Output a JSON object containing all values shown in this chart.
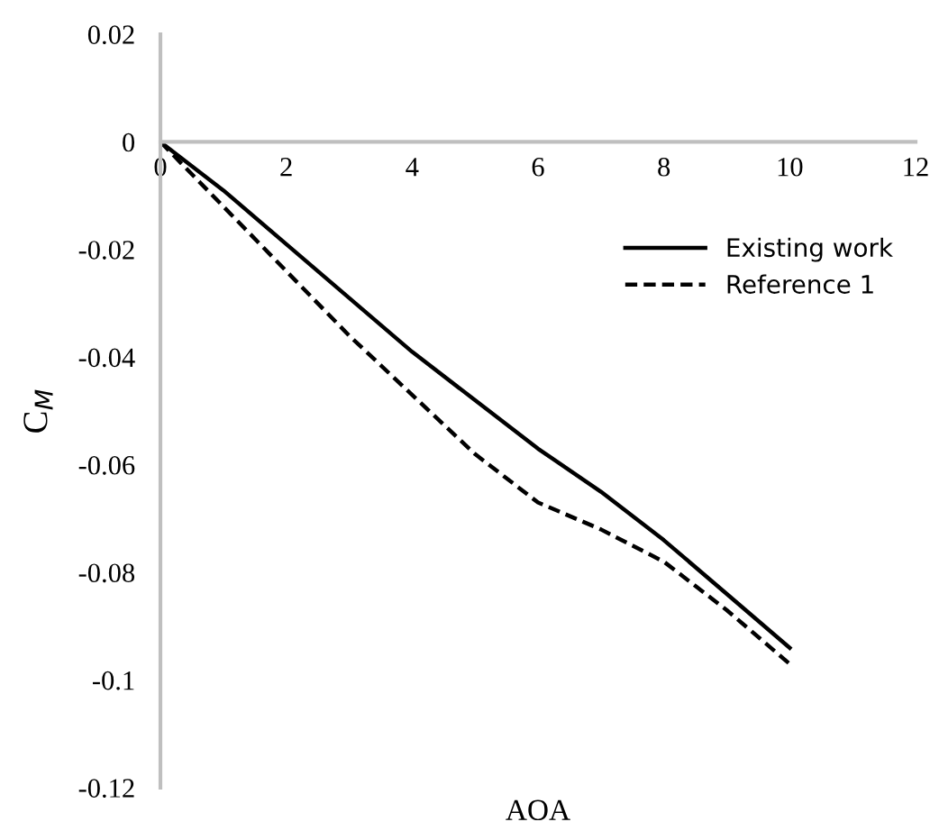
{
  "chart_data": {
    "type": "line",
    "xlabel": "AOA",
    "ylabel": "C$_{M}$",
    "x": [
      0,
      1,
      2,
      3,
      4,
      5,
      6,
      7,
      8,
      9,
      10
    ],
    "series": [
      {
        "name": "Existing work",
        "color": "#000000",
        "line_style": "solid",
        "values": [
          0,
          -0.009,
          -0.019,
          -0.029,
          -0.039,
          -0.048,
          -0.057,
          -0.065,
          -0.074,
          -0.084,
          -0.094
        ]
      },
      {
        "name": "Reference 1",
        "color": "#000000",
        "line_style": "dashed",
        "values": [
          0,
          -0.012,
          -0.024,
          -0.036,
          -0.047,
          -0.058,
          -0.067,
          -0.072,
          -0.078,
          -0.087,
          -0.097
        ]
      }
    ],
    "xlim": [
      0,
      12
    ],
    "xticks": [
      0,
      2,
      4,
      6,
      8,
      10,
      12
    ],
    "ylim": [
      -0.12,
      0.02
    ],
    "yticks": [
      {
        "value": 0.02,
        "label": "0.02"
      },
      {
        "value": 0,
        "label": "0"
      },
      {
        "value": -0.02,
        "label": "-0.02"
      },
      {
        "value": -0.04,
        "label": "-0.04"
      },
      {
        "value": -0.06,
        "label": "-0.06"
      },
      {
        "value": -0.08,
        "label": "-0.08"
      },
      {
        "value": -0.1,
        "label": "-0.1"
      },
      {
        "value": -0.12,
        "label": "-0.12"
      }
    ],
    "grid": false,
    "legend": "top right",
    "marker": "none"
  }
}
